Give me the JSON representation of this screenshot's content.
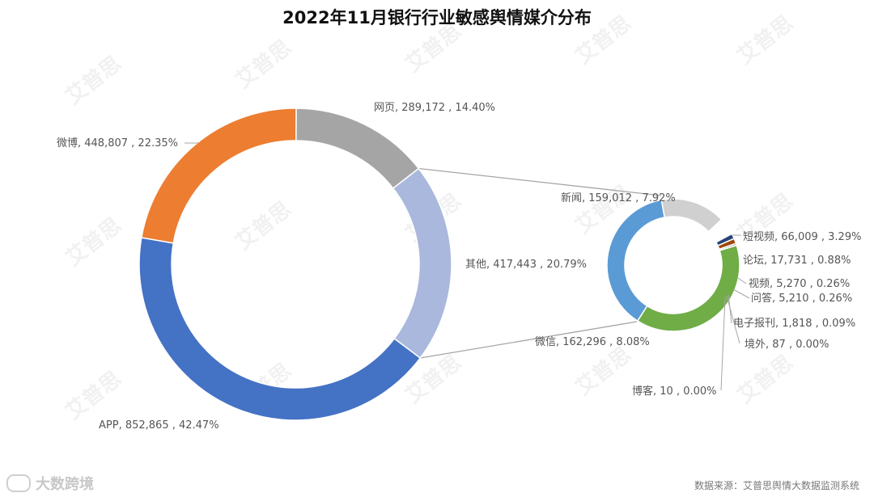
{
  "chart": {
    "title": "2022年11月银行行业敏感舆情媒介分布",
    "source_note": "数据来源：艾普思舆情大数据监测系统",
    "brand": "大数跨境",
    "watermark": "艾普思"
  },
  "chart_data": [
    {
      "type": "donut",
      "slices": [
        {
          "name": "网页",
          "value": 289172,
          "percent": "14.40%",
          "color": "#a5a5a5"
        },
        {
          "name": "其他",
          "value": 417443,
          "percent": "20.79%",
          "color": "#a9b8dc"
        },
        {
          "name": "APP",
          "value": 852865,
          "percent": "42.47%",
          "color": "#4472c4"
        },
        {
          "name": "微博",
          "value": 448807,
          "percent": "22.35%",
          "color": "#ed7d31"
        }
      ],
      "label_texts": [
        "网页, 289,172 , 14.40%",
        "其他, 417,443 , 20.79%",
        "APP, 852,865 , 42.47%",
        "微博, 448,807 , 22.35%"
      ]
    },
    {
      "type": "donut",
      "detail_of": "其他",
      "slices": [
        {
          "name": "新闻",
          "value": 159012,
          "percent": "7.92%",
          "color": "#5b9bd5"
        },
        {
          "name": "短视频",
          "value": 66009,
          "percent": "3.29%",
          "color": "#d0d0d0"
        },
        {
          "name": "论坛",
          "value": 17731,
          "percent": "0.88%",
          "color": "#ffffff"
        },
        {
          "name": "视频",
          "value": 5270,
          "percent": "0.26%",
          "color": "#264478"
        },
        {
          "name": "问答",
          "value": 5210,
          "percent": "0.26%",
          "color": "#9e480e"
        },
        {
          "name": "电子报刊",
          "value": 1818,
          "percent": "0.09%",
          "color": "#636363"
        },
        {
          "name": "境外",
          "value": 87,
          "percent": "0.00%",
          "color": "#997300"
        },
        {
          "name": "博客",
          "value": 10,
          "percent": "0.00%",
          "color": "#ffc000"
        },
        {
          "name": "微信",
          "value": 162296,
          "percent": "8.08%",
          "color": "#70ad47"
        }
      ],
      "label_texts": [
        "新闻, 159,012 , 7.92%",
        "短视频, 66,009 , 3.29%",
        "论坛, 17,731 , 0.88%",
        "视频, 5,270 , 0.26%",
        "问答, 5,210 , 0.26%",
        "电子报刊, 1,818 , 0.09%",
        "境外, 87 , 0.00%",
        "博客, 10 , 0.00%",
        "微信, 162,296 , 8.08%"
      ]
    }
  ]
}
